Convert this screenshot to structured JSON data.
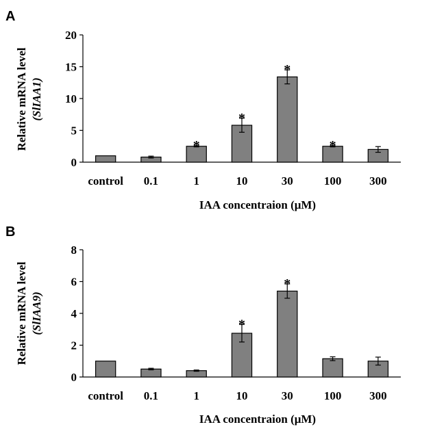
{
  "chart_data": [
    {
      "type": "bar",
      "panel_label": "A",
      "categories": [
        "control",
        "0.1",
        "1",
        "10",
        "30",
        "100",
        "300"
      ],
      "values": [
        1.0,
        0.8,
        2.5,
        5.8,
        13.4,
        2.5,
        2.0
      ],
      "errors": [
        0.0,
        0.15,
        0.1,
        1.1,
        1.1,
        0.1,
        0.45
      ],
      "significance": [
        "",
        "",
        "*",
        "*",
        "*",
        "*",
        ""
      ],
      "ylabel": "Relative mRNA level",
      "ylabel_gene": "(SlIAA1)",
      "xlabel": "IAA concentraion (μM)",
      "yticks": [
        "0",
        "5",
        "10",
        "15",
        "20"
      ],
      "ylim": [
        0,
        20
      ],
      "bar_color": "#808080"
    },
    {
      "type": "bar",
      "panel_label": "B",
      "categories": [
        "control",
        "0.1",
        "1",
        "10",
        "30",
        "100",
        "300"
      ],
      "values": [
        1.0,
        0.5,
        0.4,
        2.75,
        5.4,
        1.15,
        1.0
      ],
      "errors": [
        0.0,
        0.05,
        0.04,
        0.55,
        0.45,
        0.12,
        0.25
      ],
      "significance": [
        "",
        "",
        "",
        "*",
        "*",
        "",
        ""
      ],
      "ylabel": "Relative mRNA level",
      "ylabel_gene": "(SlIAA9)",
      "xlabel": "IAA concentraion (μM)",
      "yticks": [
        "0",
        "2",
        "4",
        "6",
        "8"
      ],
      "ylim": [
        0,
        8
      ],
      "bar_color": "#808080"
    }
  ]
}
